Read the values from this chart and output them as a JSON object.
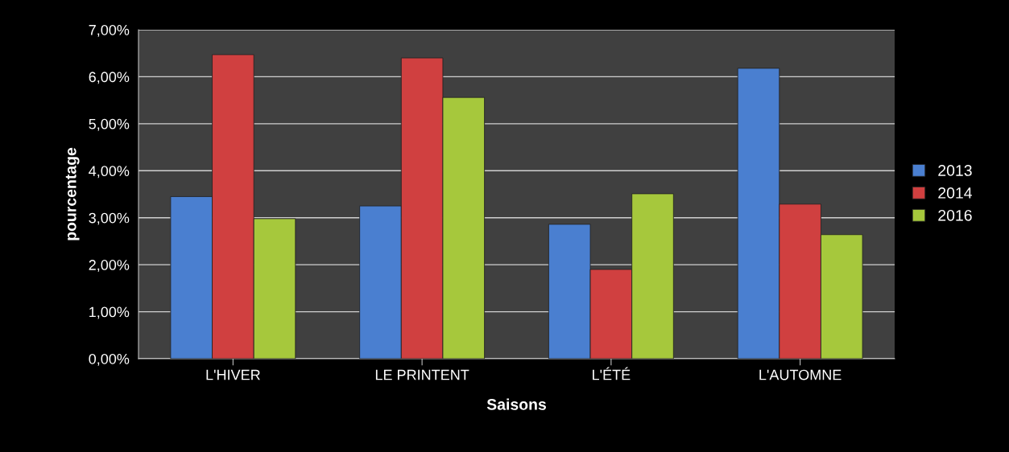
{
  "chart_data": {
    "type": "bar",
    "xlabel": "Saisons",
    "ylabel": "pourcentage",
    "categories": [
      "L'HIVER",
      "LE PRINTENT",
      "L'ÉTÉ",
      "L'AUTOMNE"
    ],
    "series": [
      {
        "name": "2013",
        "color": "#4a7fd0",
        "values": [
          3.45,
          3.25,
          2.86,
          6.18
        ]
      },
      {
        "name": "2014",
        "color": "#d04040",
        "values": [
          6.47,
          6.4,
          1.9,
          3.29
        ]
      },
      {
        "name": "2016",
        "color": "#a6c83c",
        "values": [
          2.98,
          5.56,
          3.51,
          2.64
        ]
      }
    ],
    "ylim": [
      0,
      7
    ],
    "yticks": [
      {
        "value": 0,
        "label": "0,00%"
      },
      {
        "value": 1,
        "label": "1,00%"
      },
      {
        "value": 2,
        "label": "2,00%"
      },
      {
        "value": 3,
        "label": "3,00%"
      },
      {
        "value": 4,
        "label": "4,00%"
      },
      {
        "value": 5,
        "label": "5,00%"
      },
      {
        "value": 6,
        "label": "6,00%"
      },
      {
        "value": 7,
        "label": "7,00%"
      }
    ],
    "grid": "y",
    "legend": "right"
  }
}
